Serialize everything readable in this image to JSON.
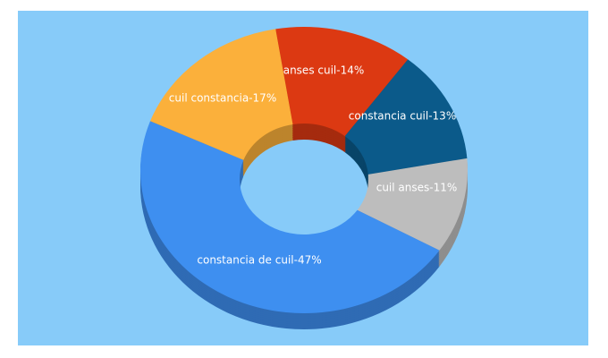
{
  "chart_data": {
    "type": "pie",
    "donut": true,
    "values": [
      14,
      13,
      11,
      47,
      17
    ],
    "value_labels": [
      "anses cuil-14%",
      "constancia cuil-13%",
      "cuil anses-11%",
      "constancia de cuil-47%",
      "cuil constancia-17%"
    ],
    "colors": [
      "#dc3912",
      "#0b5a8a",
      "#bdbdbd",
      "#3e8ff0",
      "#fbb03b"
    ],
    "background": "#87cbf9"
  }
}
